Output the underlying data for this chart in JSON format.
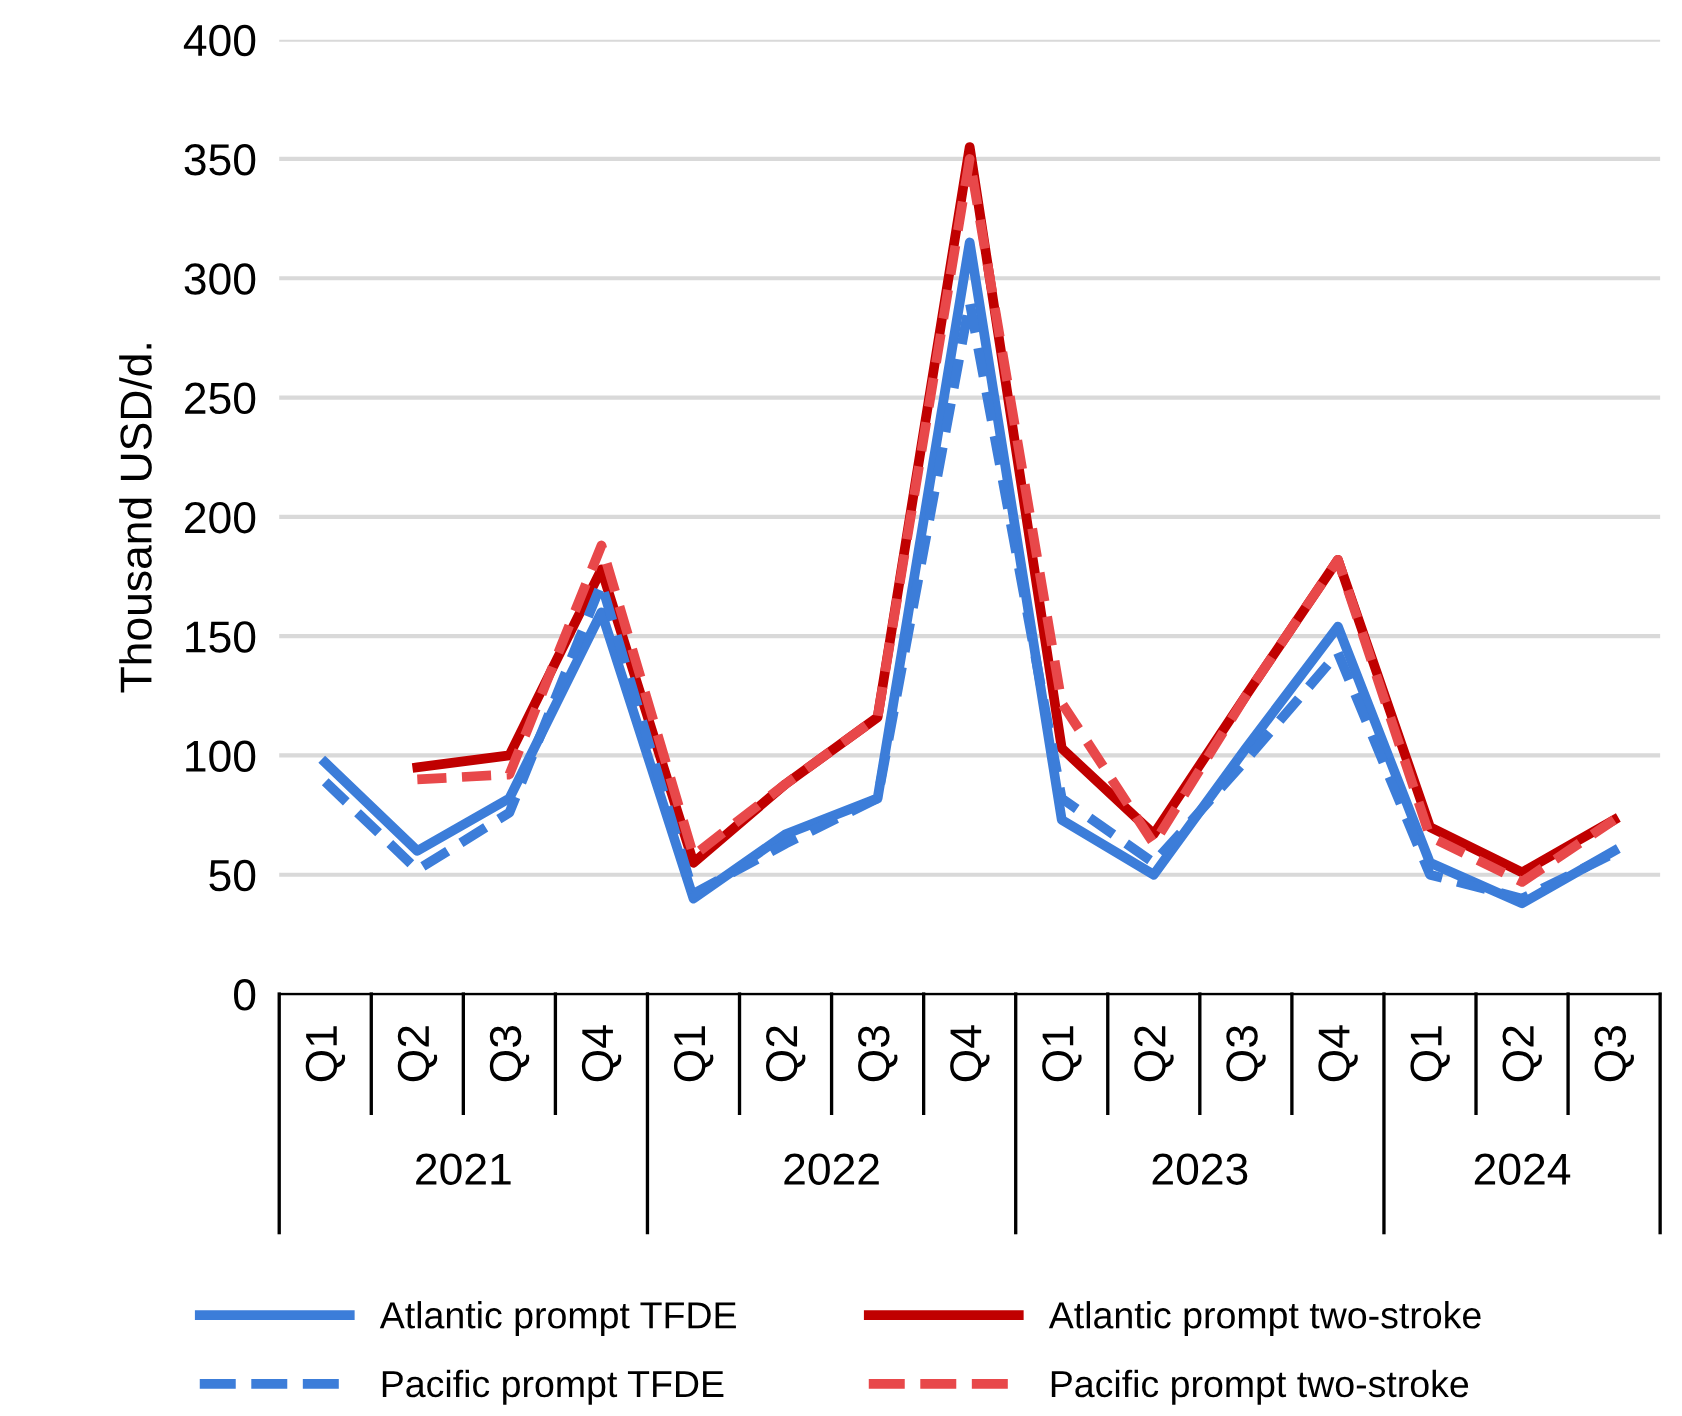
{
  "chart_data": {
    "type": "line",
    "ylabel": "Thousand USD/d.",
    "categories": [
      "Q1",
      "Q2",
      "Q3",
      "Q4",
      "Q1",
      "Q2",
      "Q3",
      "Q4",
      "Q1",
      "Q2",
      "Q3",
      "Q4",
      "Q1",
      "Q2",
      "Q3"
    ],
    "annotations": [
      "2021",
      "2022",
      "2023",
      "2024"
    ],
    "series": [
      {
        "name": "Atlantic prompt TFDE",
        "color": "#3c7dd9",
        "line_style": "solid",
        "values": [
          97,
          60,
          82,
          160,
          40,
          67,
          82,
          315,
          73,
          50,
          103,
          154,
          55,
          38,
          60
        ]
      },
      {
        "name": "Atlantic prompt two-stroke",
        "color": "#c00000",
        "line_style": "solid",
        "values": [
          null,
          95,
          100,
          178,
          55,
          88,
          116,
          355,
          103,
          67,
          125,
          182,
          70,
          51,
          73
        ]
      },
      {
        "name": "Pacific prompt TFDE",
        "color": "#3c7dd9",
        "line_style": "dashed",
        "values": [
          89,
          52,
          76,
          172,
          42,
          63,
          82,
          290,
          82,
          55,
          98,
          143,
          50,
          40,
          59
        ]
      },
      {
        "name": "Pacific prompt two-stroke",
        "color": "#e8484a",
        "line_style": "dashed",
        "values": [
          null,
          90,
          92,
          188,
          58,
          88,
          116,
          350,
          122,
          63,
          125,
          182,
          66,
          47,
          73
        ]
      }
    ],
    "ylim": [
      0,
      400
    ],
    "yticks": [
      0,
      50,
      100,
      150,
      200,
      250,
      300,
      350,
      400
    ],
    "grid": "y",
    "legend": "bottom",
    "marker": "none"
  }
}
